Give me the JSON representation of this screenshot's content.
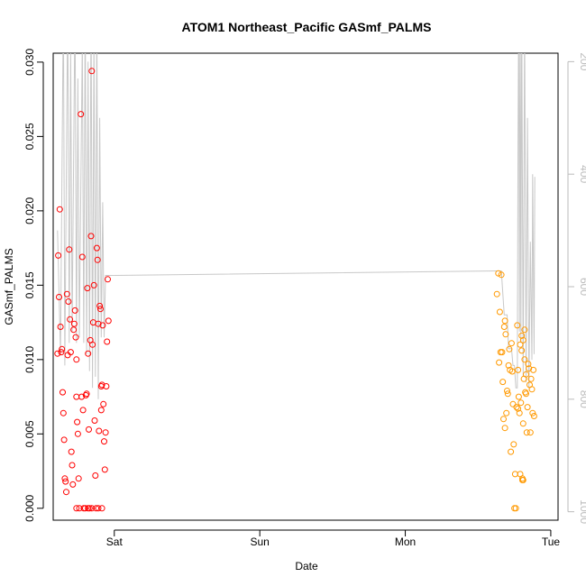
{
  "chart_data": {
    "type": "scatter",
    "title": "ATOM1 Northeast_Pacific GASmf_PALMS",
    "xlabel": "Date",
    "ylabel": "GASmf_PALMS",
    "x_ticks": [
      "Sat",
      "Sun",
      "Mon",
      "Tue"
    ],
    "x_range_days": [
      -0.42,
      3.05
    ],
    "ylim": [
      -0.0008,
      0.0306
    ],
    "y_ticks": [
      "0.000",
      "0.005",
      "0.010",
      "0.015",
      "0.020",
      "0.025",
      "0.030"
    ],
    "y_tick_values": [
      0.0,
      0.005,
      0.01,
      0.015,
      0.02,
      0.025,
      0.03
    ],
    "y2_label": "",
    "y2_range": [
      1015,
      185
    ],
    "y2_ticks": [
      "200",
      "400",
      "600",
      "800",
      "1000"
    ],
    "y2_tick_values": [
      200,
      400,
      600,
      800,
      1000
    ],
    "grid": false,
    "colors": {
      "series_early": "#ff0000",
      "series_late": "#ff9900",
      "altitude_line": "#c8c8c8",
      "axis": "#000000",
      "axis2": "#bbbbbb"
    },
    "series": [
      {
        "color": "#ff0000",
        "points": [
          [
            -0.39,
            0.0104
          ],
          [
            -0.385,
            0.017
          ],
          [
            -0.38,
            0.0142
          ],
          [
            -0.375,
            0.0201
          ],
          [
            -0.37,
            0.0122
          ],
          [
            -0.365,
            0.0105
          ],
          [
            -0.36,
            0.0107
          ],
          [
            -0.355,
            0.0078
          ],
          [
            -0.35,
            0.0064
          ],
          [
            -0.345,
            0.0046
          ],
          [
            -0.34,
            0.002
          ],
          [
            -0.335,
            0.0018
          ],
          [
            -0.33,
            0.0011
          ],
          [
            -0.325,
            0.0144
          ],
          [
            -0.32,
            0.0103
          ],
          [
            -0.315,
            0.0139
          ],
          [
            -0.31,
            0.0174
          ],
          [
            -0.305,
            0.0127
          ],
          [
            -0.3,
            0.0105
          ],
          [
            -0.295,
            0.0038
          ],
          [
            -0.29,
            0.0029
          ],
          [
            -0.285,
            0.0016
          ],
          [
            -0.28,
            0.012
          ],
          [
            -0.275,
            0.0124
          ],
          [
            -0.27,
            0.0133
          ],
          [
            -0.265,
            0.0115
          ],
          [
            -0.26,
            0.0075
          ],
          [
            -0.255,
            0.0058
          ],
          [
            -0.25,
            0.005
          ],
          [
            -0.245,
            0.002
          ],
          [
            -0.24,
            0.0
          ],
          [
            -0.23,
            0.0265
          ],
          [
            -0.225,
            0.0075
          ],
          [
            -0.22,
            0.0169
          ],
          [
            -0.215,
            0.0066
          ],
          [
            -0.21,
            0.0
          ],
          [
            -0.2,
            0.0
          ],
          [
            -0.195,
            0.0076
          ],
          [
            -0.19,
            0.0077
          ],
          [
            -0.185,
            0.0148
          ],
          [
            -0.18,
            0.0104
          ],
          [
            -0.175,
            0.0053
          ],
          [
            -0.17,
            0.0
          ],
          [
            -0.165,
            0.0113
          ],
          [
            -0.16,
            0.0183
          ],
          [
            -0.155,
            0.0294
          ],
          [
            -0.15,
            0.011
          ],
          [
            -0.145,
            0.0125
          ],
          [
            -0.14,
            0.015
          ],
          [
            -0.135,
            0.0059
          ],
          [
            -0.13,
            0.0022
          ],
          [
            -0.125,
            0.0
          ],
          [
            -0.12,
            0.0175
          ],
          [
            -0.115,
            0.0167
          ],
          [
            -0.11,
            0.0124
          ],
          [
            -0.105,
            0.0052
          ],
          [
            -0.1,
            0.0136
          ],
          [
            -0.095,
            0.0134
          ],
          [
            -0.09,
            0.0066
          ],
          [
            -0.085,
            0.0083
          ],
          [
            -0.08,
            0.0123
          ],
          [
            -0.075,
            0.007
          ],
          [
            -0.07,
            0.0045
          ],
          [
            -0.065,
            0.0026
          ],
          [
            -0.06,
            0.0051
          ],
          [
            -0.055,
            0.0082
          ],
          [
            -0.05,
            0.0112
          ],
          [
            -0.045,
            0.0154
          ],
          [
            -0.04,
            0.0126
          ],
          [
            -0.18,
            0.0
          ],
          [
            -0.11,
            0.0
          ],
          [
            -0.085,
            0.0
          ],
          [
            -0.26,
            0.0
          ],
          [
            -0.155,
            0.0
          ],
          [
            -0.26,
            0.01
          ],
          [
            -0.09,
            0.0082
          ]
        ]
      },
      {
        "color": "#ff9900",
        "points": [
          [
            2.63,
            0.0144
          ],
          [
            2.64,
            0.0158
          ],
          [
            2.645,
            0.0098
          ],
          [
            2.65,
            0.0132
          ],
          [
            2.655,
            0.0105
          ],
          [
            2.66,
            0.0157
          ],
          [
            2.665,
            0.0105
          ],
          [
            2.67,
            0.0085
          ],
          [
            2.675,
            0.006
          ],
          [
            2.68,
            0.0122
          ],
          [
            2.685,
            0.0126
          ],
          [
            2.69,
            0.0117
          ],
          [
            2.695,
            0.0064
          ],
          [
            2.7,
            0.0079
          ],
          [
            2.705,
            0.0077
          ],
          [
            2.71,
            0.0096
          ],
          [
            2.715,
            0.0107
          ],
          [
            2.72,
            0.0093
          ],
          [
            2.725,
            0.0038
          ],
          [
            2.73,
            0.0111
          ],
          [
            2.735,
            0.0092
          ],
          [
            2.74,
            0.007
          ],
          [
            2.745,
            0.0043
          ],
          [
            2.75,
            0.0
          ],
          [
            2.755,
            0.0023
          ],
          [
            2.76,
            0.0
          ],
          [
            2.765,
            0.0068
          ],
          [
            2.77,
            0.0123
          ],
          [
            2.775,
            0.0093
          ],
          [
            2.78,
            0.0075
          ],
          [
            2.785,
            0.0064
          ],
          [
            2.79,
            0.0023
          ],
          [
            2.795,
            0.0071
          ],
          [
            2.8,
            0.0116
          ],
          [
            2.805,
            0.002
          ],
          [
            2.81,
            0.0057
          ],
          [
            2.815,
            0.0087
          ],
          [
            2.82,
            0.012
          ],
          [
            2.825,
            0.0078
          ],
          [
            2.83,
            0.009
          ],
          [
            2.835,
            0.0051
          ],
          [
            2.84,
            0.0068
          ],
          [
            2.845,
            0.0097
          ],
          [
            2.85,
            0.0094
          ],
          [
            2.855,
            0.0083
          ],
          [
            2.86,
            0.0051
          ],
          [
            2.865,
            0.0087
          ],
          [
            2.87,
            0.008
          ],
          [
            2.875,
            0.0064
          ],
          [
            2.88,
            0.0093
          ],
          [
            2.885,
            0.0062
          ],
          [
            2.79,
            0.011
          ],
          [
            2.8,
            0.0106
          ],
          [
            2.81,
            0.0113
          ],
          [
            2.82,
            0.01
          ],
          [
            2.775,
            0.0067
          ],
          [
            2.83,
            0.0077
          ],
          [
            2.805,
            0.0019
          ],
          [
            2.685,
            0.0054
          ],
          [
            2.81,
            0.0019
          ]
        ]
      }
    ],
    "altitude_line": [
      [
        -0.39,
        500
      ],
      [
        -0.37,
        720
      ],
      [
        -0.35,
        90
      ],
      [
        -0.34,
        740
      ],
      [
        -0.32,
        90
      ],
      [
        -0.31,
        700
      ],
      [
        -0.3,
        180
      ],
      [
        -0.29,
        680
      ],
      [
        -0.27,
        90
      ],
      [
        -0.26,
        700
      ],
      [
        -0.25,
        230
      ],
      [
        -0.24,
        690
      ],
      [
        -0.22,
        160
      ],
      [
        -0.21,
        700
      ],
      [
        -0.2,
        90
      ],
      [
        -0.19,
        720
      ],
      [
        -0.18,
        200
      ],
      [
        -0.17,
        750
      ],
      [
        -0.16,
        90
      ],
      [
        -0.15,
        780
      ],
      [
        -0.14,
        150
      ],
      [
        -0.13,
        760
      ],
      [
        -0.12,
        110
      ],
      [
        -0.11,
        800
      ],
      [
        -0.1,
        300
      ],
      [
        -0.09,
        690
      ],
      [
        -0.08,
        450
      ],
      [
        -0.07,
        690
      ],
      [
        -0.06,
        580
      ],
      [
        -0.05,
        580
      ],
      [
        -0.03,
        580
      ],
      [
        2.63,
        572
      ],
      [
        2.66,
        572
      ],
      [
        2.68,
        650
      ],
      [
        2.7,
        650
      ],
      [
        2.71,
        710
      ],
      [
        2.73,
        710
      ],
      [
        2.74,
        740
      ],
      [
        2.75,
        740
      ],
      [
        2.76,
        780
      ],
      [
        2.77,
        780
      ],
      [
        2.775,
        340
      ],
      [
        2.78,
        90
      ],
      [
        2.785,
        680
      ],
      [
        2.79,
        70
      ],
      [
        2.795,
        700
      ],
      [
        2.8,
        90
      ],
      [
        2.81,
        760
      ],
      [
        2.82,
        110
      ],
      [
        2.83,
        770
      ],
      [
        2.84,
        300
      ],
      [
        2.85,
        780
      ],
      [
        2.86,
        520
      ],
      [
        2.87,
        730
      ],
      [
        2.875,
        400
      ],
      [
        2.885,
        720
      ],
      [
        2.89,
        405
      ]
    ]
  }
}
